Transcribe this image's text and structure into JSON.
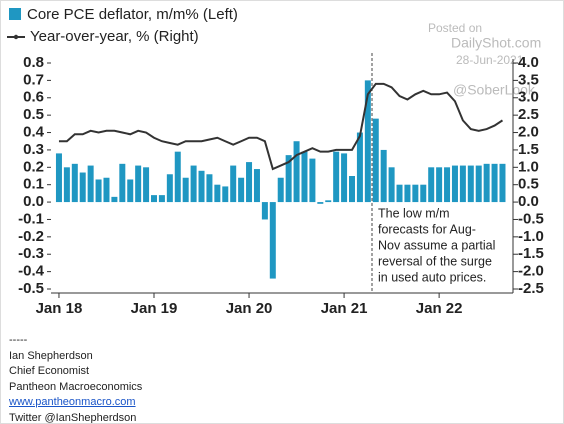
{
  "chart_data": {
    "type": "bar",
    "categories": [
      "Jan 18",
      null,
      null,
      null,
      null,
      null,
      null,
      null,
      null,
      null,
      null,
      null,
      "Jan 19",
      null,
      null,
      null,
      null,
      null,
      null,
      null,
      null,
      null,
      null,
      null,
      "Jan 20",
      null,
      null,
      null,
      null,
      null,
      null,
      null,
      null,
      null,
      null,
      null,
      "Jan 21",
      null,
      null,
      null,
      null,
      null,
      null,
      null,
      null,
      null,
      null,
      null,
      "Jan 22",
      null,
      null,
      null,
      null,
      null,
      null,
      null,
      null
    ],
    "series": [
      {
        "name": "Core PCE deflator, m/m% (Left)",
        "type": "bar",
        "color": "#1f97c2",
        "values": [
          0.28,
          0.2,
          0.22,
          0.17,
          0.21,
          0.13,
          0.14,
          0.03,
          0.22,
          0.13,
          0.21,
          0.2,
          0.04,
          0.04,
          0.16,
          0.29,
          0.14,
          0.21,
          0.18,
          0.16,
          0.1,
          0.09,
          0.21,
          0.14,
          0.23,
          0.19,
          -0.1,
          -0.44,
          0.14,
          0.27,
          0.35,
          0.29,
          0.25,
          -0.01,
          0.01,
          0.29,
          0.28,
          0.15,
          0.4,
          0.7,
          0.48,
          0.3,
          0.2,
          0.1,
          0.1,
          0.1,
          0.1,
          0.2,
          0.2,
          0.2,
          0.21,
          0.21,
          0.21,
          0.21,
          0.22,
          0.22,
          0.22
        ]
      },
      {
        "name": "Year-over-year, % (Right)",
        "type": "line",
        "axis": "y2",
        "color": "#333333",
        "values": [
          1.75,
          1.75,
          1.95,
          1.95,
          2.05,
          2.0,
          2.05,
          2.05,
          2.0,
          1.95,
          2.05,
          2.0,
          1.85,
          1.75,
          1.7,
          1.65,
          1.75,
          1.75,
          1.75,
          1.8,
          1.85,
          1.75,
          1.65,
          1.75,
          1.85,
          1.85,
          1.75,
          0.95,
          1.05,
          1.15,
          1.35,
          1.45,
          1.55,
          1.45,
          1.45,
          1.5,
          1.5,
          1.5,
          1.9,
          3.1,
          3.4,
          3.4,
          3.3,
          3.05,
          2.95,
          3.1,
          3.2,
          3.1,
          3.1,
          3.15,
          2.9,
          2.35,
          2.1,
          2.05,
          2.1,
          2.2,
          2.35
        ]
      }
    ],
    "ylim": [
      -0.5,
      0.8
    ],
    "yticks": [
      -0.5,
      -0.4,
      -0.3,
      -0.2,
      -0.1,
      {
        "value": 0,
        "label": "0.0"
      },
      0.1,
      0.2,
      0.3,
      0.4,
      0.5,
      0.6,
      0.7,
      0.8
    ],
    "y2lim": [
      -2.5,
      4.0
    ],
    "y2ticks": [
      -2.5,
      {
        "value": -2,
        "label": "-2.0"
      },
      -1.5,
      {
        "value": -1,
        "label": "-1.0"
      },
      -0.5,
      {
        "value": 0,
        "label": "0.0"
      },
      0.5,
      {
        "value": 1,
        "label": "1.0"
      },
      1.5,
      {
        "value": 2,
        "label": "2.0"
      },
      2.5,
      {
        "value": 3,
        "label": "3.0"
      },
      3.5,
      {
        "value": 4,
        "label": "4.0"
      }
    ],
    "annotation": [
      "The low m/m",
      "forecasts for Aug-",
      "Nov assume a partial",
      "reversal of the surge",
      "in used auto prices."
    ],
    "watermark": [
      "Posted on",
      "DailyShot.com",
      "28-Jun-2021",
      "@SoberLook"
    ]
  },
  "footer": [
    "-----",
    "Ian Shepherdson",
    "Chief Economist",
    "Pantheon Macroeconomics",
    "www.pantheonmacro.com",
    "Twitter @IanShepherdson"
  ]
}
